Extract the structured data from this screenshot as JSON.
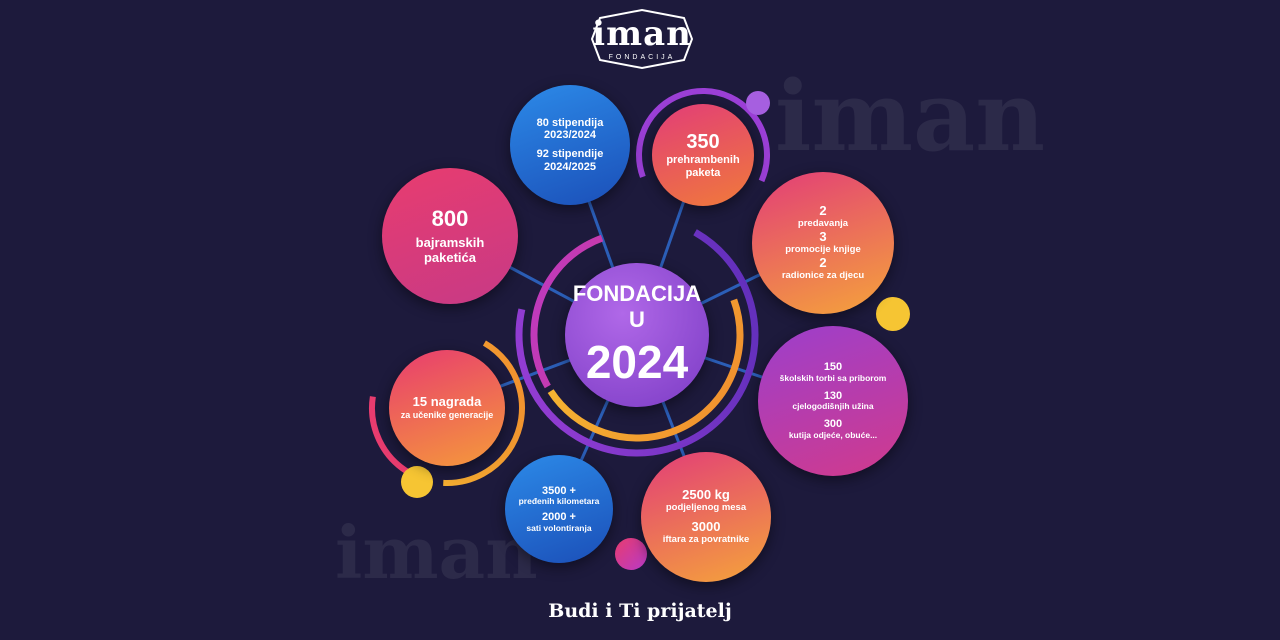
{
  "logo": {
    "name": "iman",
    "sub": "FONDACIJA"
  },
  "center": {
    "title": "FONDACIJA U",
    "year": "2024"
  },
  "circles": {
    "scholarships": {
      "line1": "80 stipendija",
      "line2": "2023/2024",
      "line3": "92 stipendije",
      "line4": "2024/2025"
    },
    "food": {
      "number": "350",
      "line1": "prehrambenih",
      "line2": "paketa"
    },
    "events": {
      "n1": "2",
      "t1": "predavanja",
      "n2": "3",
      "t2": "promocije knjige",
      "n3": "2",
      "t3": "radionice za djecu"
    },
    "bajram": {
      "number": "800",
      "line1": "bajramskih",
      "line2": "paketića"
    },
    "school": {
      "n1": "150",
      "t1": "školskih torbi sa priborom",
      "n2": "130",
      "t2": "cjelogodišnjih užina",
      "n3": "300",
      "t3": "kutija odjeće, obuće..."
    },
    "awards": {
      "line1": "15 nagrada",
      "line2": "za učenike generacije"
    },
    "volunteer": {
      "n1": "3500 +",
      "t1": "pređenih kilometara",
      "n2": "2000 +",
      "t2": "sati volontiranja"
    },
    "meat": {
      "n1": "2500 kg",
      "t1": "podjeljenog mesa",
      "n2": "3000",
      "t2": "iftara za povratnike"
    }
  },
  "footer": "Budi i Ti prijatelj",
  "colors": {
    "background": "#1d1a3c",
    "blue": "#1e63c9",
    "purple": "#8b3fc9",
    "pink": "#e63a73",
    "orange": "#f57c2e",
    "yellow": "#f6c533"
  }
}
